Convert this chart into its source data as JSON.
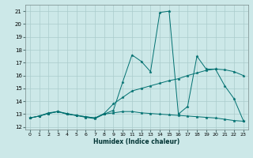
{
  "xlabel": "Humidex (Indice chaleur)",
  "xlim": [
    -0.5,
    23.5
  ],
  "ylim": [
    11.8,
    21.5
  ],
  "yticks": [
    12,
    13,
    14,
    15,
    16,
    17,
    18,
    19,
    20,
    21
  ],
  "xticks": [
    0,
    1,
    2,
    3,
    4,
    5,
    6,
    7,
    8,
    9,
    10,
    11,
    12,
    13,
    14,
    15,
    16,
    17,
    18,
    19,
    20,
    21,
    22,
    23
  ],
  "bg_color": "#cce8e8",
  "grid_color": "#aacccc",
  "line_color": "#007070",
  "line1_spiky": {
    "x": [
      0,
      1,
      2,
      3,
      4,
      5,
      6,
      7,
      8,
      9,
      10,
      11,
      12,
      13,
      14,
      15,
      16,
      17,
      18,
      19,
      20,
      21,
      22,
      23
    ],
    "y": [
      12.7,
      12.85,
      13.1,
      13.2,
      13.0,
      12.9,
      12.8,
      12.7,
      13.0,
      13.3,
      15.5,
      17.6,
      17.1,
      16.3,
      20.9,
      21.0,
      13.0,
      13.6,
      17.5,
      16.5,
      16.5,
      15.2,
      14.2,
      12.5
    ]
  },
  "line2_rising": {
    "x": [
      0,
      1,
      2,
      3,
      4,
      5,
      6,
      7,
      8,
      9,
      10,
      11,
      12,
      13,
      14,
      15,
      16,
      17,
      18,
      19,
      20,
      21,
      22,
      23
    ],
    "y": [
      12.7,
      12.85,
      13.05,
      13.2,
      13.05,
      12.9,
      12.8,
      12.7,
      13.05,
      13.8,
      14.3,
      14.8,
      15.0,
      15.2,
      15.4,
      15.6,
      15.75,
      16.0,
      16.2,
      16.4,
      16.5,
      16.45,
      16.3,
      16.0
    ]
  },
  "line3_flat": {
    "x": [
      0,
      1,
      2,
      3,
      4,
      5,
      6,
      7,
      8,
      9,
      10,
      11,
      12,
      13,
      14,
      15,
      16,
      17,
      18,
      19,
      20,
      21,
      22,
      23
    ],
    "y": [
      12.7,
      12.85,
      13.05,
      13.2,
      13.0,
      12.9,
      12.75,
      12.65,
      13.0,
      13.1,
      13.2,
      13.2,
      13.1,
      13.05,
      13.0,
      12.95,
      12.9,
      12.85,
      12.8,
      12.75,
      12.7,
      12.6,
      12.5,
      12.45
    ]
  }
}
